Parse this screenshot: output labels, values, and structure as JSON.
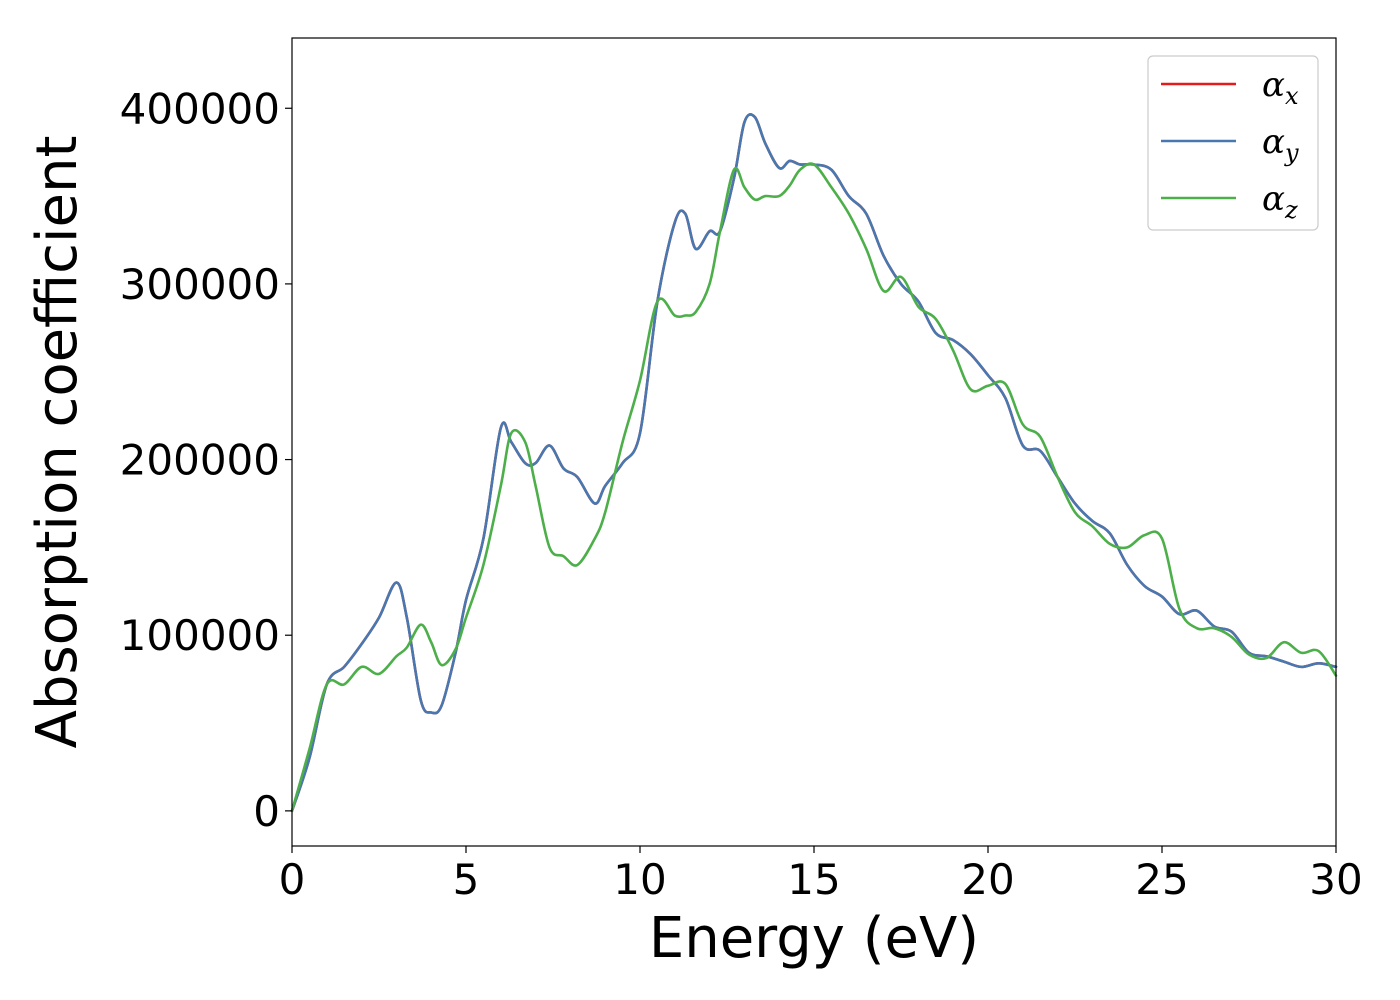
{
  "chart_data": {
    "type": "line",
    "title": "",
    "xlabel": "Energy (eV)",
    "ylabel": "Absorption coefficient",
    "xlim": [
      0,
      30
    ],
    "ylim": [
      -20000,
      440000
    ],
    "xticks": [
      0,
      5,
      10,
      15,
      20,
      25,
      30
    ],
    "yticks": [
      0,
      100000,
      200000,
      300000,
      400000
    ],
    "grid": false,
    "legend_position": "top-right",
    "series": [
      {
        "name": "α",
        "subscript": "x",
        "color": "#e41a1c",
        "x": [
          0,
          0.5,
          1.0,
          1.5,
          2.0,
          2.5,
          3.0,
          3.3,
          3.7,
          4.0,
          4.3,
          4.7,
          5.0,
          5.5,
          6.0,
          6.3,
          6.7,
          7.0,
          7.4,
          7.8,
          8.2,
          8.7,
          9.0,
          9.5,
          10.0,
          10.5,
          11.0,
          11.3,
          11.6,
          12.0,
          12.3,
          12.7,
          13.0,
          13.3,
          13.6,
          14.0,
          14.3,
          14.6,
          15.0,
          15.5,
          16.0,
          16.5,
          17.0,
          17.5,
          18.0,
          18.5,
          19.0,
          19.5,
          20.0,
          20.5,
          21.0,
          21.5,
          22.0,
          22.5,
          23.0,
          23.5,
          24.0,
          24.5,
          25.0,
          25.5,
          26.0,
          26.5,
          27.0,
          27.5,
          28.0,
          28.5,
          29.0,
          29.5,
          30.0
        ],
        "y": [
          0,
          30000,
          72000,
          82000,
          95000,
          110000,
          130000,
          110000,
          63000,
          56000,
          60000,
          90000,
          120000,
          155000,
          218000,
          210000,
          198000,
          198000,
          208000,
          195000,
          190000,
          175000,
          185000,
          198000,
          215000,
          290000,
          335000,
          340000,
          320000,
          330000,
          330000,
          360000,
          392000,
          395000,
          380000,
          366000,
          370000,
          368000,
          368000,
          365000,
          350000,
          340000,
          316000,
          300000,
          290000,
          272000,
          268000,
          260000,
          248000,
          235000,
          208000,
          205000,
          190000,
          175000,
          165000,
          158000,
          140000,
          128000,
          122000,
          112000,
          114000,
          105000,
          102000,
          90000,
          88000,
          85000,
          82000,
          84000,
          82000
        ]
      },
      {
        "name": "α",
        "subscript": "y",
        "color": "#4878b0",
        "x": [
          0,
          0.5,
          1.0,
          1.5,
          2.0,
          2.5,
          3.0,
          3.3,
          3.7,
          4.0,
          4.3,
          4.7,
          5.0,
          5.5,
          6.0,
          6.3,
          6.7,
          7.0,
          7.4,
          7.8,
          8.2,
          8.7,
          9.0,
          9.5,
          10.0,
          10.5,
          11.0,
          11.3,
          11.6,
          12.0,
          12.3,
          12.7,
          13.0,
          13.3,
          13.6,
          14.0,
          14.3,
          14.6,
          15.0,
          15.5,
          16.0,
          16.5,
          17.0,
          17.5,
          18.0,
          18.5,
          19.0,
          19.5,
          20.0,
          20.5,
          21.0,
          21.5,
          22.0,
          22.5,
          23.0,
          23.5,
          24.0,
          24.5,
          25.0,
          25.5,
          26.0,
          26.5,
          27.0,
          27.5,
          28.0,
          28.5,
          29.0,
          29.5,
          30.0
        ],
        "y": [
          0,
          30000,
          72000,
          82000,
          95000,
          110000,
          130000,
          110000,
          63000,
          56000,
          60000,
          90000,
          120000,
          155000,
          218000,
          210000,
          198000,
          198000,
          208000,
          195000,
          190000,
          175000,
          185000,
          198000,
          215000,
          290000,
          335000,
          340000,
          320000,
          330000,
          330000,
          360000,
          392000,
          395000,
          380000,
          366000,
          370000,
          368000,
          368000,
          365000,
          350000,
          340000,
          316000,
          300000,
          290000,
          272000,
          268000,
          260000,
          248000,
          235000,
          208000,
          205000,
          190000,
          175000,
          165000,
          158000,
          140000,
          128000,
          122000,
          112000,
          114000,
          105000,
          102000,
          90000,
          88000,
          85000,
          82000,
          84000,
          82000
        ]
      },
      {
        "name": "α",
        "subscript": "z",
        "color": "#4daf4a",
        "x": [
          0,
          0.5,
          1.0,
          1.5,
          2.0,
          2.5,
          3.0,
          3.3,
          3.7,
          4.0,
          4.3,
          4.7,
          5.0,
          5.5,
          6.0,
          6.3,
          6.7,
          7.0,
          7.4,
          7.8,
          8.2,
          8.7,
          9.0,
          9.5,
          10.0,
          10.5,
          11.0,
          11.3,
          11.6,
          12.0,
          12.3,
          12.7,
          13.0,
          13.3,
          13.6,
          14.0,
          14.3,
          14.6,
          15.0,
          15.5,
          16.0,
          16.5,
          17.0,
          17.5,
          18.0,
          18.5,
          19.0,
          19.5,
          20.0,
          20.5,
          21.0,
          21.5,
          22.0,
          22.5,
          23.0,
          23.5,
          24.0,
          24.5,
          25.0,
          25.5,
          26.0,
          26.5,
          27.0,
          27.5,
          28.0,
          28.5,
          29.0,
          29.5,
          30.0
        ],
        "y": [
          0,
          35000,
          72000,
          72000,
          82000,
          78000,
          88000,
          93000,
          106000,
          96000,
          83000,
          92000,
          110000,
          140000,
          185000,
          215000,
          210000,
          185000,
          150000,
          145000,
          140000,
          155000,
          170000,
          210000,
          245000,
          290000,
          282000,
          282000,
          284000,
          300000,
          330000,
          365000,
          355000,
          348000,
          350000,
          350000,
          356000,
          365000,
          368000,
          355000,
          340000,
          320000,
          296000,
          304000,
          287000,
          280000,
          262000,
          240000,
          242000,
          243000,
          220000,
          213000,
          190000,
          170000,
          162000,
          152000,
          150000,
          157000,
          155000,
          115000,
          104000,
          104000,
          99000,
          89000,
          87000,
          96000,
          90000,
          91000,
          77000
        ]
      }
    ]
  }
}
